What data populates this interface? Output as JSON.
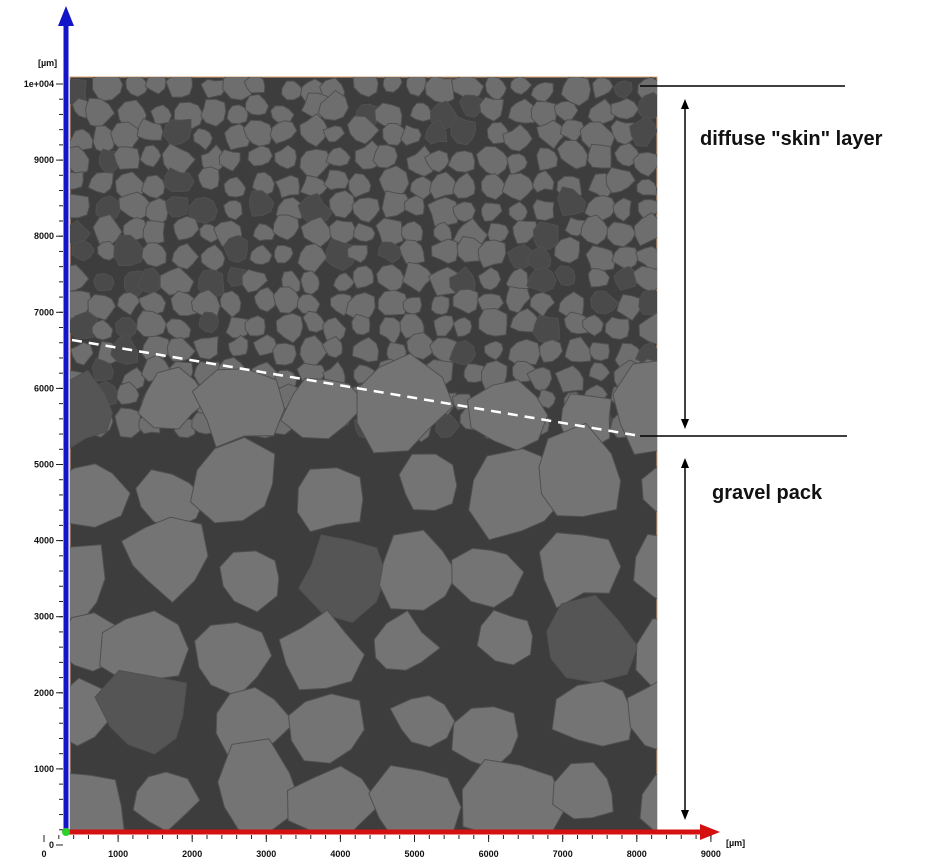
{
  "y_axis": {
    "unit": "[µm]",
    "ticks": [
      0,
      1000,
      2000,
      3000,
      4000,
      5000,
      6000,
      7000,
      8000,
      9000,
      {
        "value": 10000,
        "label": "1e+004"
      }
    ]
  },
  "x_axis": {
    "unit": "[µm]",
    "ticks": [
      0,
      1000,
      2000,
      3000,
      4000,
      5000,
      6000,
      7000,
      8000,
      9000
    ]
  },
  "annotations": {
    "upper": "diffuse \"skin\" layer",
    "lower": "gravel pack"
  }
}
